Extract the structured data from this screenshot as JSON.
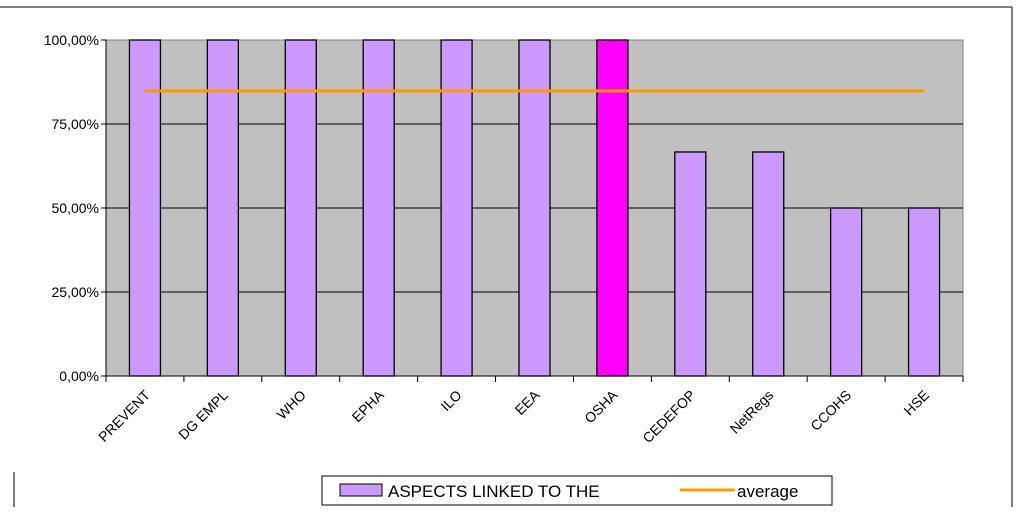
{
  "chart_data": {
    "type": "bar",
    "categories": [
      "PREVENT",
      "DG EMPL",
      "WHO",
      "EPHA",
      "ILO",
      "EEA",
      "OSHA",
      "CEDEFOP",
      "NetRegs",
      "CCOHS",
      "HSE"
    ],
    "series": [
      {
        "name": "ASPECTS LINKED TO THE",
        "type": "bar",
        "values": [
          100,
          100,
          100,
          100,
          100,
          100,
          100,
          66.67,
          66.67,
          50,
          50
        ]
      },
      {
        "name": "average",
        "type": "line",
        "values": [
          84.85,
          84.85,
          84.85,
          84.85,
          84.85,
          84.85,
          84.85,
          84.85,
          84.85,
          84.85,
          84.85
        ]
      }
    ],
    "highlight_category": "OSHA",
    "ylim": [
      0,
      100
    ],
    "yticks": [
      "0,00%",
      "25,00%",
      "50,00%",
      "75,00%",
      "100,00%"
    ],
    "grid": true,
    "legend_position": "bottom",
    "colors": {
      "bar": "#CC99FF",
      "highlight_bar": "#FF00FF",
      "average_line": "#FF9900",
      "plot_background": "#C0C0C0",
      "bar_border": "#000000"
    }
  }
}
